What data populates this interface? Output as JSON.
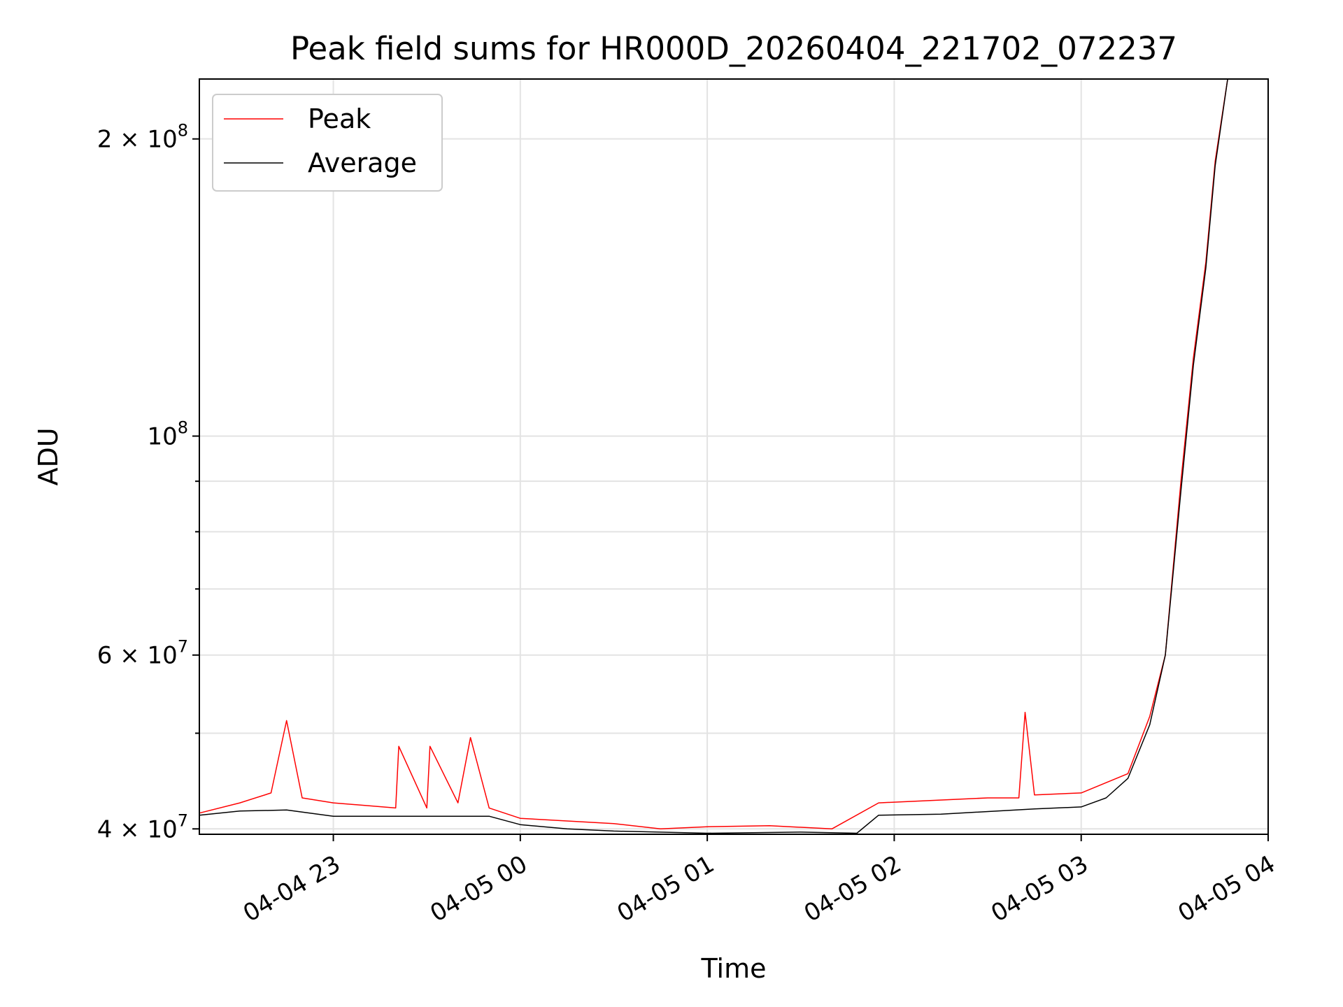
{
  "chart_data": {
    "type": "line",
    "title": "Peak field sums for HR000D_20260404_221702_072237",
    "xlabel": "Time",
    "ylabel": "ADU",
    "x_type": "datetime",
    "xlim": [
      "2026-04-04 22:17",
      "2026-04-05 04:00"
    ],
    "yscale": "log",
    "ylim": [
      39500000,
      230000000
    ],
    "grid": true,
    "legend_position": "upper left",
    "x_ticks": [
      {
        "value": "2026-04-04 23:00",
        "label": "04-04 23"
      },
      {
        "value": "2026-04-05 00:00",
        "label": "04-05 00"
      },
      {
        "value": "2026-04-05 01:00",
        "label": "04-05 01"
      },
      {
        "value": "2026-04-05 02:00",
        "label": "04-05 02"
      },
      {
        "value": "2026-04-05 03:00",
        "label": "04-05 03"
      },
      {
        "value": "2026-04-05 04:00",
        "label": "04-05 04"
      }
    ],
    "y_major_ticks": [
      {
        "value": 40000000,
        "mant": "4",
        "exp": "7"
      },
      {
        "value": 60000000,
        "mant": "6",
        "exp": "7"
      },
      {
        "value": 100000000,
        "mant": "",
        "exp": "8"
      },
      {
        "value": 200000000,
        "mant": "2",
        "exp": "8"
      }
    ],
    "y_minor_gridlines": [
      50000000,
      70000000,
      80000000,
      90000000
    ],
    "series": [
      {
        "name": "Peak",
        "color": "#ff0000",
        "points": [
          [
            "2026-04-04 22:17",
            41500000
          ],
          [
            "2026-04-04 22:30",
            42500000
          ],
          [
            "2026-04-04 22:40",
            43500000
          ],
          [
            "2026-04-04 22:45",
            51500000
          ],
          [
            "2026-04-04 22:50",
            43000000
          ],
          [
            "2026-04-04 23:00",
            42500000
          ],
          [
            "2026-04-04 23:20",
            42000000
          ],
          [
            "2026-04-04 23:21",
            48500000
          ],
          [
            "2026-04-04 23:30",
            42000000
          ],
          [
            "2026-04-04 23:31",
            48500000
          ],
          [
            "2026-04-04 23:40",
            42500000
          ],
          [
            "2026-04-04 23:44",
            49500000
          ],
          [
            "2026-04-04 23:50",
            42000000
          ],
          [
            "2026-04-05 00:00",
            41000000
          ],
          [
            "2026-04-05 00:30",
            40500000
          ],
          [
            "2026-04-05 00:45",
            40000000
          ],
          [
            "2026-04-05 01:00",
            40200000
          ],
          [
            "2026-04-05 01:20",
            40300000
          ],
          [
            "2026-04-05 01:40",
            40000000
          ],
          [
            "2026-04-05 01:55",
            42500000
          ],
          [
            "2026-04-05 02:30",
            43000000
          ],
          [
            "2026-04-05 02:40",
            43000000
          ],
          [
            "2026-04-05 02:42",
            52500000
          ],
          [
            "2026-04-05 02:45",
            43300000
          ],
          [
            "2026-04-05 03:00",
            43500000
          ],
          [
            "2026-04-05 03:15",
            45500000
          ],
          [
            "2026-04-05 03:22",
            52000000
          ],
          [
            "2026-04-05 03:27",
            60000000
          ],
          [
            "2026-04-05 03:32",
            90000000
          ],
          [
            "2026-04-05 03:36",
            120000000
          ],
          [
            "2026-04-05 03:40",
            150000000
          ],
          [
            "2026-04-05 03:43",
            190000000
          ],
          [
            "2026-04-05 03:47",
            230000000
          ]
        ]
      },
      {
        "name": "Average",
        "color": "#000000",
        "points": [
          [
            "2026-04-04 22:17",
            41300000
          ],
          [
            "2026-04-04 22:30",
            41700000
          ],
          [
            "2026-04-04 22:45",
            41800000
          ],
          [
            "2026-04-04 23:00",
            41200000
          ],
          [
            "2026-04-04 23:30",
            41200000
          ],
          [
            "2026-04-04 23:50",
            41200000
          ],
          [
            "2026-04-05 00:00",
            40400000
          ],
          [
            "2026-04-05 00:15",
            40000000
          ],
          [
            "2026-04-05 00:30",
            39800000
          ],
          [
            "2026-04-05 01:00",
            39600000
          ],
          [
            "2026-04-05 01:30",
            39700000
          ],
          [
            "2026-04-05 01:48",
            39600000
          ],
          [
            "2026-04-05 01:55",
            41300000
          ],
          [
            "2026-04-05 02:15",
            41400000
          ],
          [
            "2026-04-05 02:45",
            41900000
          ],
          [
            "2026-04-05 03:00",
            42100000
          ],
          [
            "2026-04-05 03:08",
            43000000
          ],
          [
            "2026-04-05 03:15",
            45000000
          ],
          [
            "2026-04-05 03:22",
            51000000
          ],
          [
            "2026-04-05 03:27",
            60000000
          ],
          [
            "2026-04-05 03:32",
            88000000
          ],
          [
            "2026-04-05 03:36",
            118000000
          ],
          [
            "2026-04-05 03:40",
            148000000
          ],
          [
            "2026-04-05 03:43",
            188000000
          ],
          [
            "2026-04-05 03:47",
            230000000
          ]
        ]
      }
    ]
  }
}
